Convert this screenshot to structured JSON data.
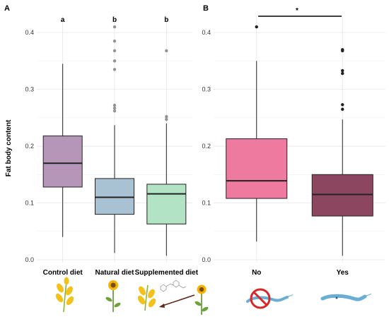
{
  "chart_data": [
    {
      "panel": "A",
      "type": "boxplot",
      "ylabel": "Fat body content",
      "ylim": [
        -0.005,
        0.43
      ],
      "yticks": [
        "0.0",
        "0.1",
        "0.2",
        "0.3",
        "0.4"
      ],
      "categories": [
        "Control diet",
        "Natural diet",
        "Supplemented diet"
      ],
      "letters": [
        "a",
        "b",
        "b"
      ],
      "boxes": [
        {
          "color": "#B596B8",
          "q1": 0.128,
          "median": 0.17,
          "q3": 0.218,
          "whisker_low": 0.04,
          "whisker_high": 0.345,
          "outliers": []
        },
        {
          "color": "#A8C2D3",
          "q1": 0.08,
          "median": 0.11,
          "q3": 0.143,
          "whisker_low": 0.012,
          "whisker_high": 0.237,
          "outliers": [
            0.41,
            0.385,
            0.368,
            0.35,
            0.335,
            0.272,
            0.267,
            0.262
          ]
        },
        {
          "color": "#B3E3C5",
          "q1": 0.063,
          "median": 0.116,
          "q3": 0.133,
          "whisker_low": 0.007,
          "whisker_high": 0.24,
          "outliers": [
            0.368,
            0.252,
            0.247
          ]
        }
      ],
      "diet_icons": [
        "maize-icon",
        "sunflower-icon",
        "maize-supplement-arrow-sunflower-icon"
      ]
    },
    {
      "panel": "B",
      "type": "boxplot",
      "ylabel": "",
      "ylim": [
        -0.005,
        0.43
      ],
      "yticks": [
        "0.0",
        "0.1",
        "0.2",
        "0.3",
        "0.4"
      ],
      "categories": [
        "No",
        "Yes"
      ],
      "significance": "*",
      "boxes": [
        {
          "color": "#EE7AA0",
          "q1": 0.108,
          "median": 0.139,
          "q3": 0.213,
          "whisker_low": 0.032,
          "whisker_high": 0.35,
          "outliers": [
            0.41
          ]
        },
        {
          "color": "#8C4660",
          "q1": 0.077,
          "median": 0.115,
          "q3": 0.15,
          "whisker_low": 0.007,
          "whisker_high": 0.247,
          "outliers": [
            0.37,
            0.368,
            0.333,
            0.328,
            0.273,
            0.265
          ]
        }
      ],
      "infection_icons": [
        "no-parasite-icon",
        "parasite-icon"
      ]
    }
  ]
}
